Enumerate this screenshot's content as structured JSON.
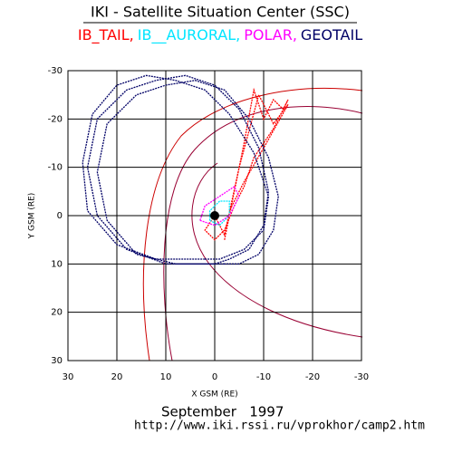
{
  "chart_data": {
    "type": "line",
    "title": "IKI - Satellite Situation Center (SSC)",
    "x_label": "X GSM (RE)",
    "y_label": "Y GSM (RE)",
    "date": "September   1997",
    "url": "http://www.iki.rssi.ru/vprokhor/camp2.htm",
    "xlim": [
      30,
      -30
    ],
    "ylim": [
      30,
      -30
    ],
    "xticks": [
      30,
      20,
      10,
      0,
      -10,
      -20,
      -30
    ],
    "yticks": [
      -30,
      -20,
      -10,
      0,
      10,
      20,
      30
    ],
    "grid": true,
    "series": [
      {
        "name": "IB_TAIL,",
        "color": "#ff0000",
        "x": [
          -2,
          -4,
          -6,
          -8,
          -10,
          -12,
          -14,
          -15,
          -12,
          -8,
          -6,
          -4,
          -2,
          0,
          2,
          0,
          -2,
          -5,
          -9,
          -12,
          -15,
          -10,
          -6,
          -3
        ],
        "values": [
          5,
          -5,
          -15,
          -26,
          -20,
          -24,
          -22,
          -24,
          -18,
          -12,
          -6,
          -2,
          3,
          5,
          3,
          0,
          4,
          -10,
          -25,
          -19,
          -23,
          -14,
          -7,
          -1
        ]
      },
      {
        "name": "IB__AURORAL,",
        "color": "#00e5ff",
        "x": [
          1,
          -1,
          -3,
          -3,
          -1,
          1,
          1
        ],
        "values": [
          1,
          2,
          0,
          -3,
          -3,
          -1,
          1
        ]
      },
      {
        "name": "POLAR,",
        "color": "#ff00ff",
        "x": [
          3,
          0,
          -3,
          -5,
          -4,
          -1,
          2,
          3
        ],
        "values": [
          1,
          2,
          0,
          -4,
          -6,
          -4,
          -2,
          1
        ]
      },
      {
        "name": "GEOTAIL",
        "color": "#000066",
        "x": [
          0,
          10,
          18,
          24,
          26,
          24,
          18,
          12,
          6,
          0,
          -5,
          -9,
          -11,
          -10,
          -7,
          -3,
          0,
          null,
          2,
          12,
          20,
          26,
          27,
          25,
          20,
          14,
          8,
          2,
          -3,
          -8,
          -11,
          -10,
          -6,
          -1,
          2,
          null,
          -2,
          8,
          16,
          22,
          24,
          22,
          16,
          10,
          4,
          -2,
          -7,
          -11,
          -13,
          -12,
          -9,
          -5,
          -2
        ],
        "values": [
          10,
          10,
          7,
          0,
          -10,
          -20,
          -26,
          -28,
          -29,
          -27,
          -22,
          -14,
          -5,
          2,
          7,
          9,
          10,
          null,
          9,
          9,
          6,
          -1,
          -11,
          -21,
          -27,
          -29,
          -28,
          -26,
          -21,
          -13,
          -4,
          3,
          7,
          9,
          9,
          null,
          10,
          10,
          8,
          1,
          -9,
          -19,
          -25,
          -27,
          -28,
          -26,
          -20,
          -12,
          -4,
          3,
          8,
          10,
          10
        ]
      }
    ]
  }
}
